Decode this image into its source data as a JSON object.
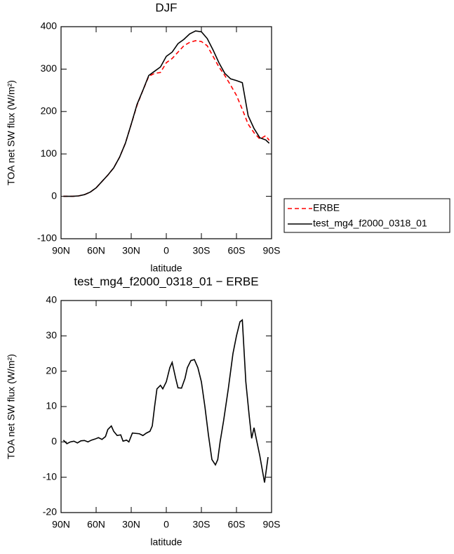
{
  "chart_data": [
    {
      "type": "line",
      "title": "DJF",
      "xlabel": "latitude",
      "ylabel": "TOA net SW flux (W/m²)",
      "x": [
        88,
        85,
        80,
        75,
        70,
        65,
        60,
        55,
        50,
        45,
        40,
        35,
        30,
        25,
        20,
        15,
        10,
        5,
        0,
        -5,
        -10,
        -15,
        -20,
        -25,
        -30,
        -35,
        -40,
        -45,
        -50,
        -55,
        -60,
        -65,
        -70,
        -75,
        -80,
        -85,
        -88
      ],
      "series": [
        {
          "name": "ERBE",
          "color": "#ff0000",
          "linestyle": "dashed",
          "values": [
            0,
            0,
            0,
            1,
            4,
            10,
            20,
            35,
            50,
            67,
            92,
            125,
            170,
            215,
            250,
            283,
            290,
            292,
            315,
            325,
            340,
            355,
            363,
            367,
            365,
            355,
            330,
            305,
            285,
            262,
            238,
            205,
            170,
            150,
            135,
            143,
            132
          ]
        },
        {
          "name": "test_mg4_f2000_0318_01",
          "color": "#000000",
          "linestyle": "solid",
          "values": [
            0,
            0,
            0,
            1,
            4,
            10,
            20,
            35,
            50,
            67,
            92,
            125,
            170,
            217,
            250,
            285,
            295,
            305,
            330,
            340,
            360,
            370,
            383,
            390,
            388,
            372,
            345,
            315,
            290,
            277,
            273,
            268,
            190,
            160,
            138,
            133,
            125
          ]
        }
      ],
      "xlim": [
        90,
        -90
      ],
      "xticks": [
        {
          "value": 90,
          "label": "90N"
        },
        {
          "value": 60,
          "label": "60N"
        },
        {
          "value": 30,
          "label": "30N"
        },
        0,
        {
          "value": -30,
          "label": "30S"
        },
        {
          "value": -60,
          "label": "60S"
        },
        {
          "value": -90,
          "label": "90S"
        }
      ],
      "ylim": [
        -100,
        400
      ],
      "yticks": [
        -100,
        0,
        100,
        200,
        300,
        400
      ],
      "legend": "right"
    },
    {
      "type": "line",
      "title": "test_mg4_f2000_0318_01 − ERBE",
      "xlabel": "latitude",
      "ylabel": "TOA net SW flux (W/m²)",
      "x": [
        88,
        85,
        82,
        79,
        76,
        73,
        70,
        67,
        64,
        61,
        58,
        55,
        52,
        50,
        47,
        45,
        42,
        39,
        37,
        34,
        32,
        29,
        26,
        23,
        20,
        17,
        14,
        12,
        10,
        8,
        5,
        3,
        0,
        -3,
        -5,
        -8,
        -10,
        -13,
        -16,
        -18,
        -21,
        -24,
        -27,
        -30,
        -33,
        -36,
        -39,
        -42,
        -44,
        -46,
        -49,
        -53,
        -57,
        -60,
        -63,
        -65,
        -68,
        -71,
        -73,
        -75,
        -80,
        -84,
        -87
      ],
      "series": [
        {
          "name": "test_mg4_f2000_0318_01 − ERBE",
          "color": "#000000",
          "linestyle": "solid",
          "values": [
            0.5,
            -0.5,
            0,
            0.2,
            -0.3,
            0.3,
            0.4,
            0,
            0.5,
            0.8,
            1.2,
            0.7,
            1.5,
            3.5,
            4.5,
            3,
            1.8,
            2,
            0.2,
            0.5,
            0,
            2.5,
            2.4,
            2.3,
            1.8,
            2.5,
            3,
            4.5,
            10,
            15,
            16,
            15,
            17,
            21,
            22.5,
            18,
            15.3,
            15.2,
            18,
            21,
            23,
            23.3,
            21,
            17,
            10,
            2,
            -5,
            -6.5,
            -5,
            0,
            6,
            15,
            25,
            30,
            34,
            34.5,
            17,
            7,
            1,
            4,
            -4,
            -11.5,
            -4.3
          ]
        }
      ],
      "xlim": [
        90,
        -90
      ],
      "xticks": [
        {
          "value": 90,
          "label": "90N"
        },
        {
          "value": 60,
          "label": "60N"
        },
        {
          "value": 30,
          "label": "30N"
        },
        0,
        {
          "value": -30,
          "label": "30S"
        },
        {
          "value": -60,
          "label": "60S"
        },
        {
          "value": -90,
          "label": "90S"
        }
      ],
      "ylim": [
        -20,
        40
      ],
      "yticks": [
        -20,
        -10,
        0,
        10,
        20,
        30,
        40
      ]
    }
  ]
}
